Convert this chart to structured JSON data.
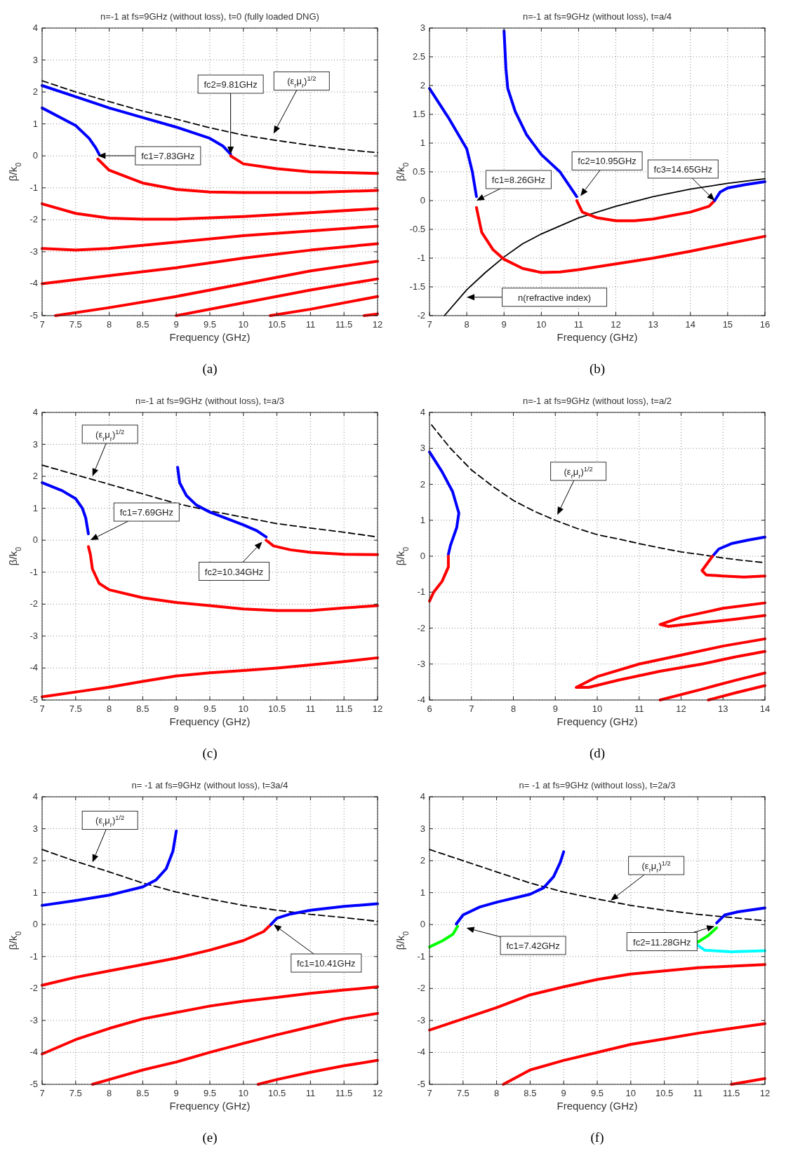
{
  "chart_data": [
    {
      "type": "line",
      "title": "n=-1 at fs=9GHz (without loss), t=0 (fully loaded DNG)",
      "xlabel": "Frequency (GHz)",
      "ylabel": "β/k$_{0}$",
      "xlim": [
        7,
        12
      ],
      "xticks": [
        7,
        7.5,
        8,
        8.5,
        9,
        9.5,
        10,
        10.5,
        11,
        11.5,
        12
      ],
      "ylim": [
        -5,
        4
      ],
      "yticks": [
        -5,
        -4,
        -3,
        -2,
        -1,
        0,
        1,
        2,
        3,
        4
      ],
      "grid": true,
      "series": [
        {
          "color": "#000000",
          "line_style": "dashed",
          "x": [
            7,
            7.5,
            8,
            8.5,
            9,
            9.5,
            10,
            10.5,
            11,
            11.5,
            12
          ],
          "values": [
            2.35,
            2.0,
            1.7,
            1.4,
            1.15,
            0.88,
            0.65,
            0.48,
            0.33,
            0.2,
            0.1
          ]
        },
        {
          "color": "#0000ff",
          "x": [
            7,
            7.5,
            8,
            8.5,
            9,
            9.5,
            9.7,
            9.81
          ],
          "values": [
            2.2,
            1.85,
            1.5,
            1.2,
            0.9,
            0.55,
            0.3,
            0.05
          ]
        },
        {
          "color": "#0000ff",
          "x": [
            7,
            7.5,
            7.7,
            7.8,
            7.85
          ],
          "values": [
            1.5,
            0.95,
            0.55,
            0.25,
            0.05
          ]
        },
        {
          "color": "#ff0000",
          "x": [
            9.81,
            10,
            10.5,
            11,
            12
          ],
          "values": [
            0,
            -0.25,
            -0.4,
            -0.5,
            -0.55
          ]
        },
        {
          "color": "#ff0000",
          "x": [
            7.83,
            8,
            8.5,
            9,
            9.5,
            10,
            11,
            12
          ],
          "values": [
            -0.1,
            -0.45,
            -0.85,
            -1.05,
            -1.13,
            -1.15,
            -1.15,
            -1.08
          ]
        },
        {
          "color": "#ff0000",
          "x": [
            7,
            7.5,
            8,
            8.5,
            9,
            10,
            11,
            12
          ],
          "values": [
            -1.5,
            -1.8,
            -1.95,
            -1.98,
            -1.98,
            -1.9,
            -1.78,
            -1.65
          ]
        },
        {
          "color": "#ff0000",
          "x": [
            7,
            7.5,
            8,
            9,
            10,
            11,
            12
          ],
          "values": [
            -2.9,
            -2.95,
            -2.9,
            -2.7,
            -2.5,
            -2.35,
            -2.2
          ]
        },
        {
          "color": "#ff0000",
          "x": [
            7,
            8,
            9,
            10,
            11,
            12
          ],
          "values": [
            -4.0,
            -3.75,
            -3.5,
            -3.2,
            -2.95,
            -2.75
          ]
        },
        {
          "color": "#ff0000",
          "x": [
            7.2,
            8,
            9,
            10,
            11,
            12
          ],
          "values": [
            -5,
            -4.75,
            -4.4,
            -4.0,
            -3.6,
            -3.3
          ]
        },
        {
          "color": "#ff0000",
          "x": [
            9,
            10,
            11,
            12
          ],
          "values": [
            -5,
            -4.6,
            -4.2,
            -3.85
          ]
        },
        {
          "color": "#ff0000",
          "x": [
            10.4,
            11,
            12
          ],
          "values": [
            -5,
            -4.8,
            -4.4
          ]
        },
        {
          "color": "#ff0000",
          "x": [
            11.8,
            12
          ],
          "values": [
            -5,
            -4.95
          ]
        }
      ],
      "annotations": [
        "fc1=7.83GHz",
        "fc2=9.81GHz",
        "(ε$_{r}$μ$_{r}$)$^{1/2}$",
        "(a)"
      ]
    },
    {
      "type": "line",
      "title": "n=-1 at fs=9GHz (without loss), t=a/4",
      "xlabel": "Frequency (GHz)",
      "ylabel": "β/k$_{0}$",
      "xlim": [
        7,
        16
      ],
      "xticks": [
        7,
        8,
        9,
        10,
        11,
        12,
        13,
        14,
        15,
        16
      ],
      "ylim": [
        -2,
        3
      ],
      "yticks": [
        -2,
        -1.5,
        -1,
        -0.5,
        0,
        0.5,
        1,
        1.5,
        2,
        2.5,
        3
      ],
      "grid": true,
      "series": [
        {
          "color": "#000000",
          "x": [
            7.4,
            8,
            8.5,
            9,
            9.5,
            10,
            11,
            12,
            13,
            14,
            15,
            16
          ],
          "values": [
            -2,
            -1.55,
            -1.25,
            -0.98,
            -0.75,
            -0.58,
            -0.3,
            -0.1,
            0.07,
            0.2,
            0.3,
            0.38
          ]
        },
        {
          "color": "#0000ff",
          "x": [
            7,
            7.5,
            8,
            8.15,
            8.26
          ],
          "values": [
            1.95,
            1.45,
            0.9,
            0.5,
            0.07
          ]
        },
        {
          "color": "#ff0000",
          "x": [
            8.26,
            8.4,
            8.7,
            9,
            9.5,
            10,
            10.5,
            11,
            12,
            13,
            14,
            15,
            16
          ],
          "values": [
            -0.12,
            -0.55,
            -0.85,
            -1.02,
            -1.18,
            -1.25,
            -1.24,
            -1.2,
            -1.1,
            -1.0,
            -0.88,
            -0.75,
            -0.62
          ]
        },
        {
          "color": "#0000ff",
          "x": [
            9,
            9.05,
            9.1,
            9.3,
            9.6,
            10,
            10.5,
            10.95
          ],
          "values": [
            2.95,
            2.3,
            1.95,
            1.55,
            1.15,
            0.8,
            0.5,
            0.07
          ]
        },
        {
          "color": "#ff0000",
          "x": [
            10.95,
            11.1,
            11.5,
            12,
            12.5,
            13,
            14,
            14.5,
            14.65
          ],
          "values": [
            0,
            -0.2,
            -0.3,
            -0.35,
            -0.35,
            -0.32,
            -0.2,
            -0.1,
            0
          ]
        },
        {
          "color": "#0000ff",
          "x": [
            14.65,
            14.8,
            15,
            15.5,
            16
          ],
          "values": [
            0,
            0.15,
            0.22,
            0.28,
            0.33
          ]
        }
      ],
      "annotations": [
        "fc1=8.26GHz",
        "fc2=10.95GHz",
        {
          "text": "fc3=14.65GHz",
          "x": 14.65,
          "y": 0
        },
        "n(refractive index)",
        "(b)"
      ]
    },
    {
      "type": "line",
      "title": "n=-1 at fs=9GHz (without loss), t=a/3",
      "xlabel": "Frequency (GHz)",
      "ylabel": "β/k$_{0}$",
      "xlim": [
        7,
        12
      ],
      "xticks": [
        7,
        7.5,
        8,
        8.5,
        9,
        9.5,
        10,
        10.5,
        11,
        11.5,
        12
      ],
      "ylim": [
        -5,
        4
      ],
      "yticks": [
        -5,
        -4,
        -3,
        -2,
        -1,
        0,
        1,
        2,
        3,
        4
      ],
      "grid": true,
      "series": [
        {
          "color": "#000000",
          "line_style": "dashed",
          "x": [
            7,
            7.5,
            8,
            8.5,
            9,
            9.5,
            10,
            10.5,
            11,
            11.5,
            12
          ],
          "values": [
            2.35,
            2.05,
            1.75,
            1.45,
            1.15,
            0.92,
            0.72,
            0.52,
            0.38,
            0.25,
            0.1
          ]
        },
        {
          "color": "#0000ff",
          "x": [
            7,
            7.3,
            7.5,
            7.6,
            7.65,
            7.69
          ],
          "values": [
            1.8,
            1.55,
            1.3,
            1.0,
            0.7,
            0.2
          ]
        },
        {
          "color": "#ff0000",
          "x": [
            7.69,
            7.72,
            7.75,
            7.85,
            8,
            8.5,
            9,
            9.5,
            10,
            10.5,
            11,
            11.5,
            12
          ],
          "values": [
            -0.2,
            -0.45,
            -0.9,
            -1.35,
            -1.55,
            -1.8,
            -1.95,
            -2.05,
            -2.15,
            -2.2,
            -2.2,
            -2.12,
            -2.05
          ]
        },
        {
          "color": "#0000ff",
          "x": [
            9.02,
            9.05,
            9.15,
            9.3,
            9.5,
            10,
            10.2,
            10.34
          ],
          "values": [
            2.28,
            1.8,
            1.4,
            1.1,
            0.88,
            0.48,
            0.3,
            0.1
          ]
        },
        {
          "color": "#ff0000",
          "x": [
            10.34,
            10.45,
            10.7,
            11,
            11.5,
            12
          ],
          "values": [
            0,
            -0.18,
            -0.3,
            -0.38,
            -0.44,
            -0.45
          ]
        },
        {
          "color": "#ff0000",
          "x": [
            7,
            7.5,
            8,
            8.5,
            9,
            9.5,
            10,
            10.5,
            11,
            11.5,
            12
          ],
          "values": [
            -4.9,
            -4.75,
            -4.6,
            -4.42,
            -4.25,
            -4.15,
            -4.08,
            -4.0,
            -3.9,
            -3.8,
            -3.68
          ]
        }
      ],
      "annotations": [
        "(ε$_{r}$μ$_{r}$)$^{1/2}$",
        "fc1=7.69GHz",
        "fc2=10.34GHz",
        "(c)"
      ]
    },
    {
      "type": "line",
      "title": "n=-1 at fs=9GHz (without loss), t=a/2",
      "xlabel": "Frequency (GHz)",
      "ylabel": "β/k$_{0}$",
      "xlim": [
        6,
        14
      ],
      "xticks": [
        6,
        7,
        8,
        9,
        10,
        11,
        12,
        13,
        14
      ],
      "ylim": [
        -4,
        4
      ],
      "yticks": [
        -4,
        -3,
        -2,
        -1,
        0,
        1,
        2,
        3,
        4
      ],
      "grid": true,
      "series": [
        {
          "color": "#000000",
          "line_style": "dashed",
          "x": [
            6.05,
            6.5,
            7,
            7.5,
            8,
            8.5,
            9,
            9.5,
            10,
            10.5,
            11,
            11.5,
            12,
            12.5,
            13,
            13.5,
            14
          ],
          "values": [
            3.65,
            3.0,
            2.4,
            1.95,
            1.55,
            1.25,
            1.0,
            0.78,
            0.6,
            0.48,
            0.35,
            0.23,
            0.12,
            0.04,
            -0.05,
            -0.12,
            -0.18
          ]
        },
        {
          "color": "#0000ff",
          "x": [
            6.0,
            6.3,
            6.55,
            6.7,
            6.65,
            6.5,
            6.45
          ],
          "values": [
            2.9,
            2.35,
            1.8,
            1.2,
            0.8,
            0.3,
            0.05
          ]
        },
        {
          "color": "#ff0000",
          "x": [
            6.45,
            6.45,
            6.3,
            6.1,
            6.0
          ],
          "values": [
            0,
            -0.3,
            -0.7,
            -1.0,
            -1.25
          ]
        },
        {
          "color": "#0000ff",
          "x": [
            12.75,
            12.9,
            13.2,
            13.6,
            14
          ],
          "values": [
            0,
            0.2,
            0.35,
            0.45,
            0.53
          ]
        },
        {
          "color": "#ff0000",
          "x": [
            12.75,
            12.5,
            12.6,
            13,
            13.5,
            14
          ],
          "values": [
            0,
            -0.4,
            -0.52,
            -0.55,
            -0.58,
            -0.55
          ]
        },
        {
          "color": "#ff0000",
          "x": [
            14,
            13,
            12,
            11.5,
            11.7,
            12.5,
            13.3,
            14
          ],
          "values": [
            -1.3,
            -1.45,
            -1.7,
            -1.9,
            -1.95,
            -1.85,
            -1.75,
            -1.65
          ]
        },
        {
          "color": "#ff0000",
          "x": [
            14,
            13,
            12,
            11,
            10,
            9.5,
            9.8,
            10.5,
            11.5,
            12.5,
            13.3,
            14
          ],
          "values": [
            -2.3,
            -2.5,
            -2.75,
            -3.0,
            -3.35,
            -3.65,
            -3.65,
            -3.45,
            -3.2,
            -3.0,
            -2.8,
            -2.65
          ]
        },
        {
          "color": "#ff0000",
          "x": [
            11.5,
            12.5,
            13.3,
            14
          ],
          "values": [
            -4,
            -3.7,
            -3.45,
            -3.25
          ]
        },
        {
          "color": "#ff0000",
          "x": [
            12.65,
            13.3,
            14
          ],
          "values": [
            -4,
            -3.8,
            -3.6
          ]
        }
      ],
      "annotations": [
        "(ε$_{r}$μ$_{r}$)$^{1/2}$",
        "(d)"
      ]
    },
    {
      "type": "line",
      "title": "n= -1 at fs=9GHz (without loss), t=3a/4",
      "xlabel": "Frequency (GHz)",
      "ylabel": "β/k$_{0}$",
      "xlim": [
        7,
        12
      ],
      "xticks": [
        7,
        7.5,
        8,
        8.5,
        9,
        9.5,
        10,
        10.5,
        11,
        11.5,
        12
      ],
      "ylim": [
        -5,
        4
      ],
      "yticks": [
        -5,
        -4,
        -3,
        -2,
        -1,
        0,
        1,
        2,
        3,
        4
      ],
      "grid": true,
      "series": [
        {
          "color": "#000000",
          "line_style": "dashed",
          "x": [
            7,
            7.5,
            8,
            8.5,
            9,
            9.5,
            10,
            10.5,
            11,
            11.5,
            12
          ],
          "values": [
            2.35,
            1.98,
            1.65,
            1.3,
            1.02,
            0.8,
            0.6,
            0.45,
            0.32,
            0.22,
            0.1
          ]
        },
        {
          "color": "#0000ff",
          "x": [
            7,
            7.5,
            8,
            8.5,
            8.7,
            8.85,
            8.95,
            9.0
          ],
          "values": [
            0.6,
            0.75,
            0.92,
            1.18,
            1.4,
            1.75,
            2.3,
            2.93
          ]
        },
        {
          "color": "#ff0000",
          "x": [
            7,
            7.5,
            8,
            8.5,
            9,
            9.5,
            10,
            10.3,
            10.41
          ],
          "values": [
            -1.9,
            -1.65,
            -1.45,
            -1.25,
            -1.05,
            -0.8,
            -0.5,
            -0.22,
            0
          ]
        },
        {
          "color": "#0000ff",
          "x": [
            10.41,
            10.5,
            10.7,
            11,
            11.5,
            12
          ],
          "values": [
            0,
            0.2,
            0.33,
            0.45,
            0.57,
            0.65
          ]
        },
        {
          "color": "#ff0000",
          "x": [
            7,
            7.5,
            8,
            8.5,
            9,
            9.5,
            10,
            10.5,
            11,
            11.5,
            12
          ],
          "values": [
            -4.05,
            -3.6,
            -3.25,
            -2.95,
            -2.75,
            -2.55,
            -2.4,
            -2.28,
            -2.15,
            -2.05,
            -1.95
          ]
        },
        {
          "color": "#ff0000",
          "x": [
            7.75,
            8,
            8.5,
            9,
            9.5,
            10,
            10.5,
            11,
            11.5,
            12
          ],
          "values": [
            -5,
            -4.85,
            -4.55,
            -4.3,
            -4.0,
            -3.72,
            -3.45,
            -3.2,
            -2.95,
            -2.78
          ]
        },
        {
          "color": "#ff0000",
          "x": [
            10.22,
            10.5,
            11,
            11.5,
            12
          ],
          "values": [
            -5,
            -4.85,
            -4.62,
            -4.42,
            -4.25
          ]
        }
      ],
      "annotations": [
        "(ε$_{r}$μ$_{r}$)$^{1/2}$",
        "fc1=10.41GHz",
        "(e)"
      ]
    },
    {
      "type": "line",
      "title": "n= -1 at fs=9GHz (without loss), t=2a/3",
      "xlabel": "Frequency (GHz)",
      "ylabel": "β/k$_{0}$",
      "xlim": [
        7,
        12
      ],
      "xticks": [
        7,
        7.5,
        8,
        8.5,
        9,
        9.5,
        10,
        10.5,
        11,
        11.5,
        12
      ],
      "ylim": [
        -5,
        4
      ],
      "yticks": [
        -5,
        -4,
        -3,
        -2,
        -1,
        0,
        1,
        2,
        3,
        4
      ],
      "grid": true,
      "series": [
        {
          "color": "#000000",
          "line_style": "dashed",
          "x": [
            7,
            7.5,
            8,
            8.5,
            9,
            9.5,
            10,
            10.5,
            11,
            11.5,
            12
          ],
          "values": [
            2.35,
            2.0,
            1.65,
            1.3,
            1.02,
            0.8,
            0.6,
            0.45,
            0.32,
            0.22,
            0.12
          ]
        },
        {
          "color": "#00ff00",
          "x": [
            7,
            7.2,
            7.35,
            7.42
          ],
          "values": [
            -0.7,
            -0.5,
            -0.3,
            -0.05
          ]
        },
        {
          "color": "#0000ff",
          "x": [
            7.4,
            7.5,
            7.75,
            8,
            8.5,
            8.7,
            8.85,
            8.95,
            9.0
          ],
          "values": [
            0.02,
            0.3,
            0.55,
            0.7,
            0.95,
            1.15,
            1.5,
            1.95,
            2.28
          ]
        },
        {
          "color": "#00ff00",
          "x": [
            11,
            11.15,
            11.28
          ],
          "values": [
            -0.55,
            -0.35,
            -0.1
          ]
        },
        {
          "color": "#0000ff",
          "x": [
            11.28,
            11.4,
            11.6,
            12
          ],
          "values": [
            0.05,
            0.3,
            0.4,
            0.52
          ]
        },
        {
          "color": "#00ffff",
          "x": [
            11,
            11.1,
            11.5,
            12
          ],
          "values": [
            -0.65,
            -0.8,
            -0.85,
            -0.82
          ]
        },
        {
          "color": "#ff0000",
          "x": [
            7,
            7.5,
            8,
            8.5,
            9,
            9.5,
            10,
            10.5,
            11,
            11.5,
            12
          ],
          "values": [
            -3.3,
            -2.95,
            -2.6,
            -2.2,
            -1.95,
            -1.72,
            -1.55,
            -1.45,
            -1.35,
            -1.3,
            -1.25
          ]
        },
        {
          "color": "#ff0000",
          "x": [
            8.1,
            8.5,
            9,
            9.5,
            10,
            10.5,
            11,
            11.5,
            12
          ],
          "values": [
            -5,
            -4.55,
            -4.25,
            -4.0,
            -3.75,
            -3.58,
            -3.4,
            -3.25,
            -3.1
          ]
        },
        {
          "color": "#ff0000",
          "x": [
            11.5,
            12
          ],
          "values": [
            -5,
            -4.82
          ]
        }
      ],
      "annotations": [
        "(ε$_{r}$μ$_{r}$)$^{1/2}$",
        "fc1=7.42GHz",
        "fc2=11.28GHz",
        "(f)"
      ]
    }
  ]
}
